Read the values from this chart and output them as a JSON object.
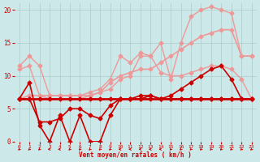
{
  "bg_color": "#cce8e8",
  "grid_color": "#aacccc",
  "xlabel": "Vent moyen/en rafales ( km/h )",
  "xlabel_color": "#cc0000",
  "tick_color": "#cc0000",
  "xlim": [
    -0.5,
    23.5
  ],
  "ylim": [
    0,
    21
  ],
  "yticks": [
    0,
    5,
    10,
    15,
    20
  ],
  "xticks": [
    0,
    1,
    2,
    3,
    4,
    5,
    6,
    7,
    8,
    9,
    10,
    11,
    12,
    13,
    14,
    15,
    16,
    17,
    18,
    19,
    20,
    21,
    22,
    23
  ],
  "line_flat_x": [
    0,
    1,
    2,
    3,
    4,
    5,
    6,
    7,
    8,
    9,
    10,
    11,
    12,
    13,
    14,
    15,
    16,
    17,
    18,
    19,
    20,
    21,
    22,
    23
  ],
  "line_flat_y": [
    6.5,
    6.5,
    6.5,
    6.5,
    6.5,
    6.5,
    6.5,
    6.5,
    6.5,
    6.5,
    6.5,
    6.5,
    6.5,
    6.5,
    6.5,
    6.5,
    6.5,
    6.5,
    6.5,
    6.5,
    6.5,
    6.5,
    6.5,
    6.5
  ],
  "line_flat_color": "#cc0000",
  "line_flat_lw": 2.0,
  "line_volatile_x": [
    0,
    1,
    2,
    3,
    4,
    5,
    6,
    7,
    8,
    9,
    10,
    11,
    12,
    13,
    14,
    15,
    16,
    17,
    18,
    19,
    20,
    21,
    22,
    23
  ],
  "line_volatile_y": [
    6.5,
    9,
    2.5,
    0,
    4,
    0,
    4,
    0,
    0,
    4,
    6.5,
    6.5,
    7,
    7,
    6.5,
    6.5,
    6.5,
    6.5,
    6.5,
    6.5,
    6.5,
    6.5,
    6.5,
    6.5
  ],
  "line_volatile_color": "#cc0000",
  "line_volatile_lw": 1.2,
  "line_rise_x": [
    0,
    1,
    2,
    3,
    4,
    5,
    6,
    7,
    8,
    9,
    10,
    11,
    12,
    13,
    14,
    15,
    16,
    17,
    18,
    19,
    20,
    21,
    22,
    23
  ],
  "line_rise_y": [
    6.5,
    6.5,
    3,
    3,
    3.5,
    5,
    5,
    4,
    3.5,
    5.5,
    6.5,
    6.5,
    6.5,
    7,
    6.5,
    7,
    8,
    9,
    10,
    11,
    11.5,
    9.5,
    6.5,
    6.5
  ],
  "line_rise_color": "#cc0000",
  "line_rise_lw": 1.2,
  "line_pink1_x": [
    0,
    1,
    2,
    3,
    4,
    5,
    6,
    7,
    8,
    9,
    10,
    11,
    12,
    13,
    14,
    15,
    16,
    17,
    18,
    19,
    20,
    21,
    22,
    23
  ],
  "line_pink1_y": [
    11,
    11.5,
    7,
    6.5,
    6.5,
    6.5,
    6.5,
    7,
    7.5,
    8,
    9.5,
    10,
    13,
    13,
    10.5,
    10,
    10,
    10.5,
    11,
    11.5,
    11.5,
    11,
    9.5,
    6.5
  ],
  "line_pink1_color": "#ee9999",
  "line_pink1_lw": 1.0,
  "line_pink2_x": [
    0,
    1,
    2,
    3,
    4,
    5,
    6,
    7,
    8,
    9,
    10,
    11,
    12,
    13,
    14,
    15,
    16,
    17,
    18,
    19,
    20,
    21,
    22,
    23
  ],
  "line_pink2_y": [
    11.5,
    13,
    11.5,
    7,
    7,
    7,
    7,
    7.5,
    8,
    9.5,
    13,
    12,
    13.5,
    13,
    15,
    9.5,
    15,
    19,
    20,
    20.5,
    20,
    19.5,
    13,
    13
  ],
  "line_pink2_color": "#ee9999",
  "line_pink2_lw": 1.0,
  "line_pink3_x": [
    0,
    1,
    2,
    3,
    4,
    5,
    6,
    7,
    8,
    9,
    10,
    11,
    12,
    13,
    14,
    15,
    16,
    17,
    18,
    19,
    20,
    21,
    22,
    23
  ],
  "line_pink3_y": [
    6.5,
    7,
    7,
    7,
    7,
    7,
    7,
    7,
    7.5,
    9,
    10,
    10.5,
    11,
    11,
    12,
    13,
    14,
    15,
    16,
    16.5,
    17,
    17,
    13,
    13
  ],
  "line_pink3_color": "#ee9999",
  "line_pink3_lw": 1.2,
  "marker_size": 2.5
}
